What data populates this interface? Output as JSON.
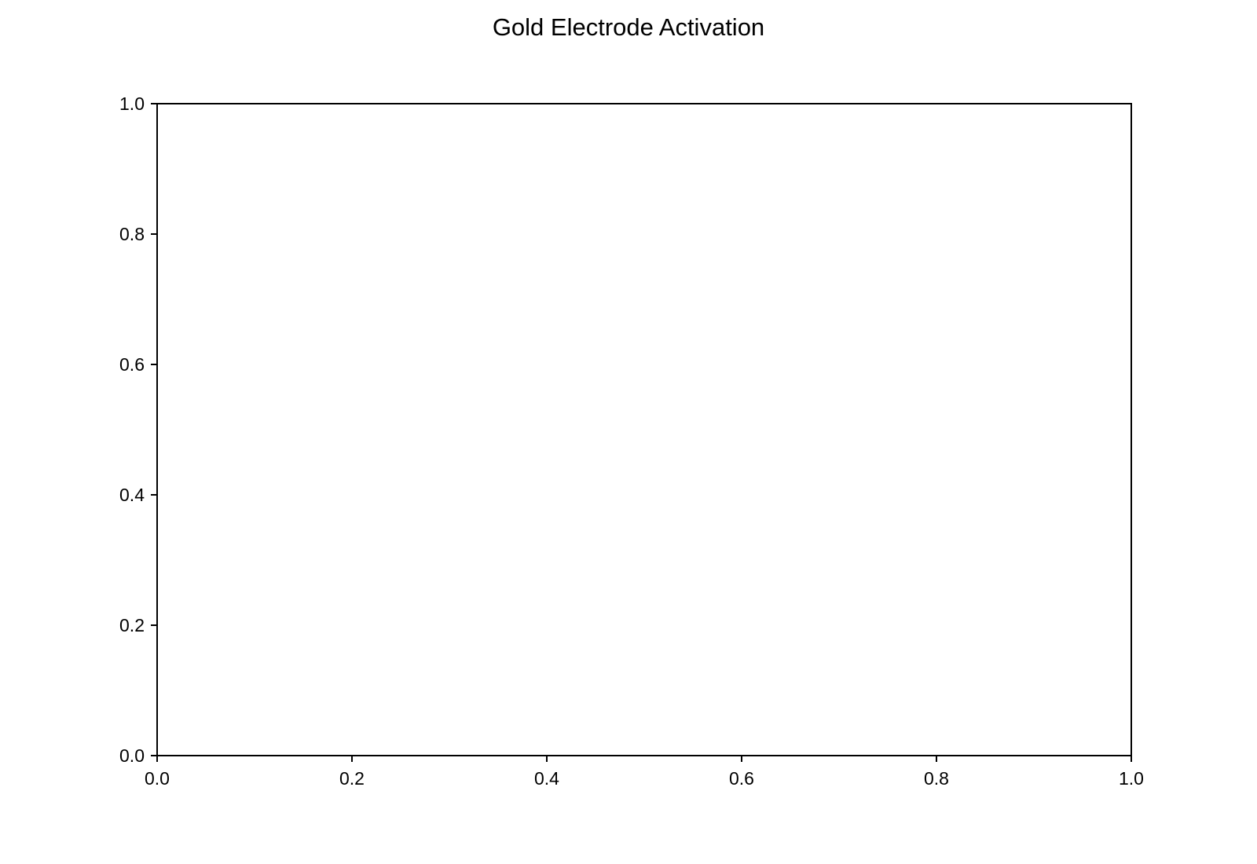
{
  "chart_data": {
    "type": "line",
    "title": "Gold Electrode Activation",
    "xlabel": "",
    "ylabel": "",
    "xlim": [
      0.0,
      1.0
    ],
    "ylim": [
      0.0,
      1.0
    ],
    "x_ticks": [
      "0.0",
      "0.2",
      "0.4",
      "0.6",
      "0.8",
      "1.0"
    ],
    "y_ticks": [
      "0.0",
      "0.2",
      "0.4",
      "0.6",
      "0.8",
      "1.0"
    ],
    "grid": false,
    "series": [],
    "colors": {
      "axes": "#000000",
      "background": "#ffffff"
    }
  }
}
